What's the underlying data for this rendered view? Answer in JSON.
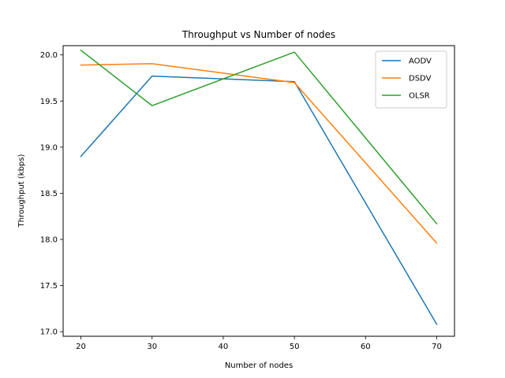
{
  "chart_data": {
    "type": "line",
    "title": "Throughput vs Number of nodes",
    "xlabel": "Number of nodes",
    "ylabel": "Throughput (kbps)",
    "x": [
      20,
      30,
      40,
      50,
      60,
      70
    ],
    "xlim": [
      17.5,
      72.5
    ],
    "ylim": [
      16.95,
      20.1
    ],
    "xticks": [
      20,
      30,
      40,
      50,
      60,
      70
    ],
    "yticks": [
      17.0,
      17.5,
      18.0,
      18.5,
      19.0,
      19.5,
      20.0
    ],
    "ytick_labels": [
      "17.0",
      "17.5",
      "18.0",
      "18.5",
      "19.0",
      "19.5",
      "20.0"
    ],
    "grid": false,
    "legend_position": "top-right",
    "series": [
      {
        "name": "AODV",
        "color": "#1f77b4",
        "x": [
          20,
          30,
          50,
          70
        ],
        "values": [
          18.9,
          19.77,
          19.71,
          17.08
        ]
      },
      {
        "name": "DSDV",
        "color": "#ff7f0e",
        "x": [
          20,
          30,
          50,
          70
        ],
        "values": [
          19.89,
          19.905,
          19.7,
          17.96
        ]
      },
      {
        "name": "OLSR",
        "color": "#2ca02c",
        "x": [
          20,
          30,
          50,
          70
        ],
        "values": [
          20.05,
          19.45,
          20.03,
          18.17
        ]
      }
    ]
  }
}
